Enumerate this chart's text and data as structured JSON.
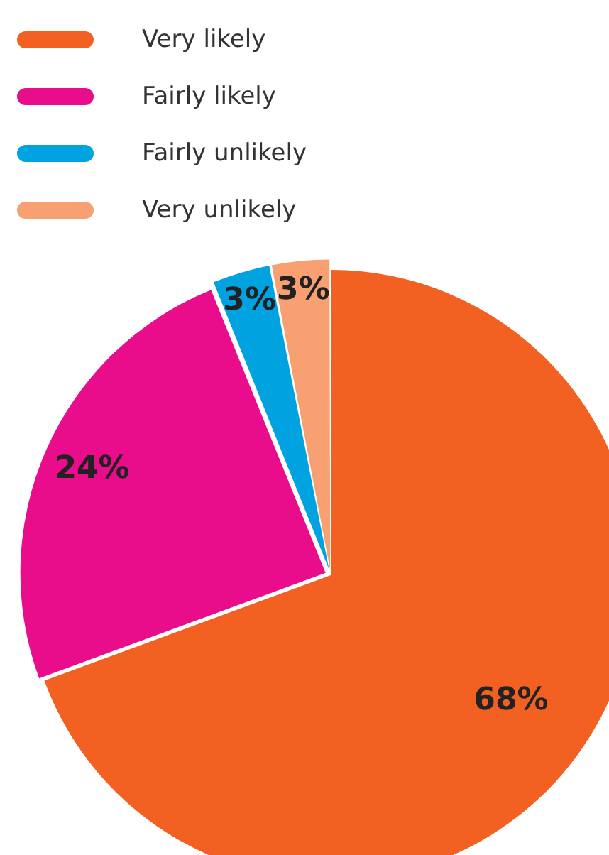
{
  "chart_data": {
    "type": "pie",
    "categories": [
      "Very likely",
      "Fairly likely",
      "Fairly unlikely",
      "Very unlikely"
    ],
    "values": [
      68,
      24,
      3,
      3
    ],
    "colors": [
      "#f26122",
      "#e90c8b",
      "#00a3e0",
      "#f9a072"
    ],
    "value_labels": [
      "68%",
      "24%",
      "3%",
      "3%"
    ],
    "legend": "top left"
  }
}
